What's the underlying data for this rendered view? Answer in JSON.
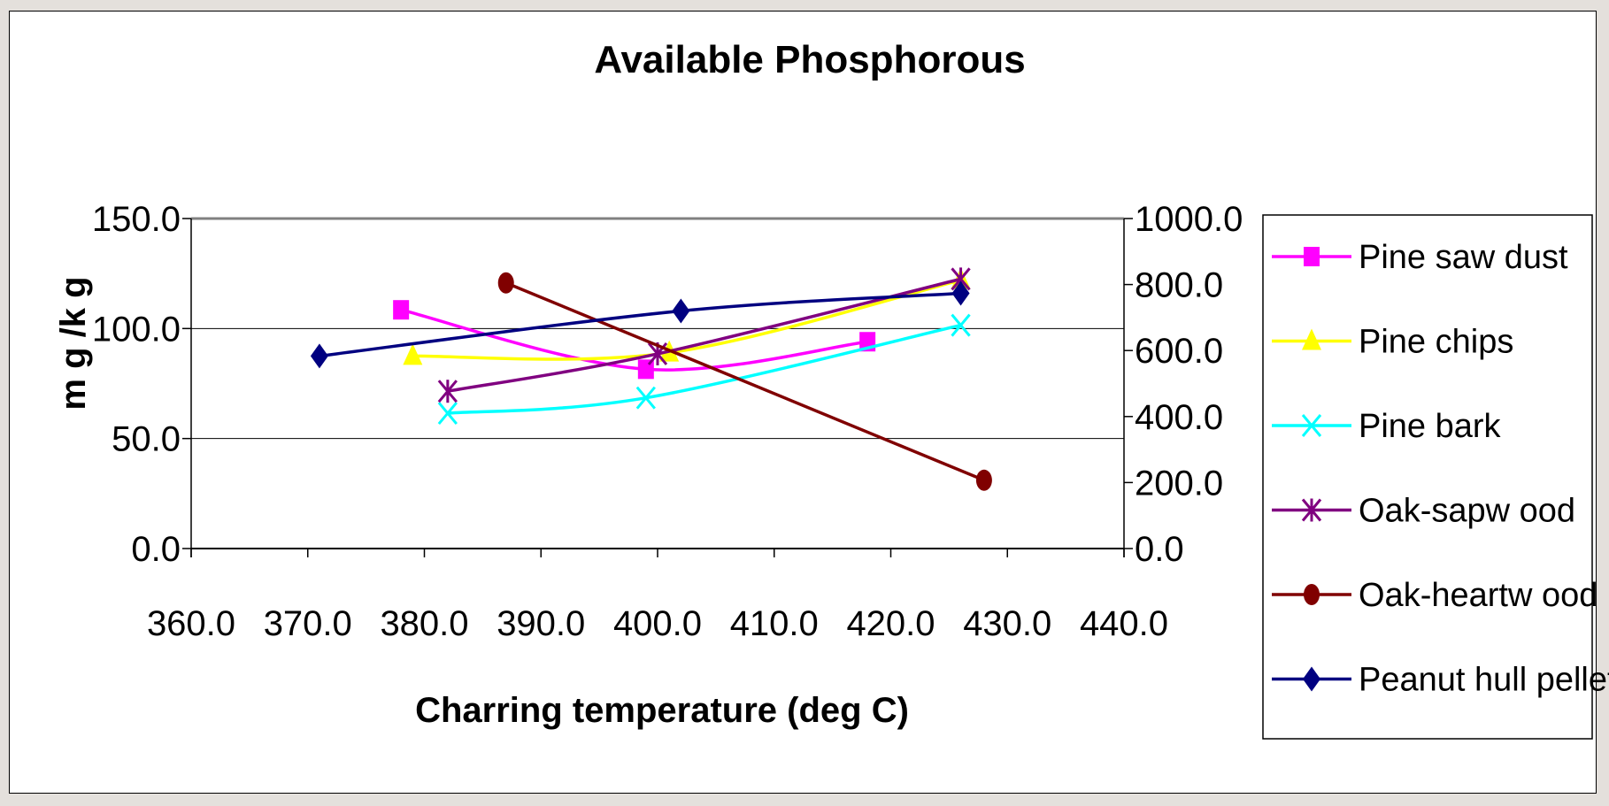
{
  "chart_data": {
    "type": "line",
    "title": "Available Phosphorous",
    "xlabel": "Charring temperature (deg C)",
    "ylabel": "m g /k g",
    "xlim": [
      360,
      440
    ],
    "ylim": [
      0,
      150
    ],
    "y2lim": [
      0,
      1000
    ],
    "xticks": [
      "360.0",
      "370.0",
      "380.0",
      "390.0",
      "400.0",
      "410.0",
      "420.0",
      "430.0",
      "440.0"
    ],
    "yticks": [
      "0.0",
      "50.0",
      "100.0",
      "150.0"
    ],
    "y2ticks": [
      "0.0",
      "200.0",
      "400.0",
      "600.0",
      "800.0",
      "1000.0"
    ],
    "gridlines": "horizontal",
    "legend_position": "right",
    "series": [
      {
        "name": "Pine saw dust",
        "axis": "left",
        "color": "#ff00ff",
        "marker": "square",
        "x": [
          378,
          399,
          418
        ],
        "y": [
          108.5,
          81.5,
          94
        ]
      },
      {
        "name": "Pine chips",
        "axis": "left",
        "color": "#ffff00",
        "marker": "triangle",
        "x": [
          379,
          401,
          426
        ],
        "y": [
          87.5,
          89,
          122
        ]
      },
      {
        "name": "Pine bark",
        "axis": "left",
        "color": "#00ffff",
        "marker": "x",
        "x": [
          382,
          399,
          426
        ],
        "y": [
          61.5,
          68.5,
          101.5
        ]
      },
      {
        "name": "Oak-sapw ood",
        "axis": "left",
        "color": "#800080",
        "marker": "star",
        "x": [
          382,
          400,
          426
        ],
        "y": [
          71.5,
          88.5,
          122.5
        ]
      },
      {
        "name": "Oak-heartw ood",
        "axis": "right",
        "color": "#800000",
        "marker": "circle",
        "x": [
          387,
          428
        ],
        "y": [
          805,
          207
        ]
      },
      {
        "name": "Peanut hull pellets",
        "axis": "left",
        "color": "#000080",
        "marker": "diamond",
        "x": [
          371,
          402,
          426
        ],
        "y": [
          87.5,
          108,
          116
        ]
      }
    ]
  },
  "colors": {
    "axis": "#000000",
    "grid": "#000000",
    "top_border": "#808080",
    "background": "#ffffff"
  }
}
